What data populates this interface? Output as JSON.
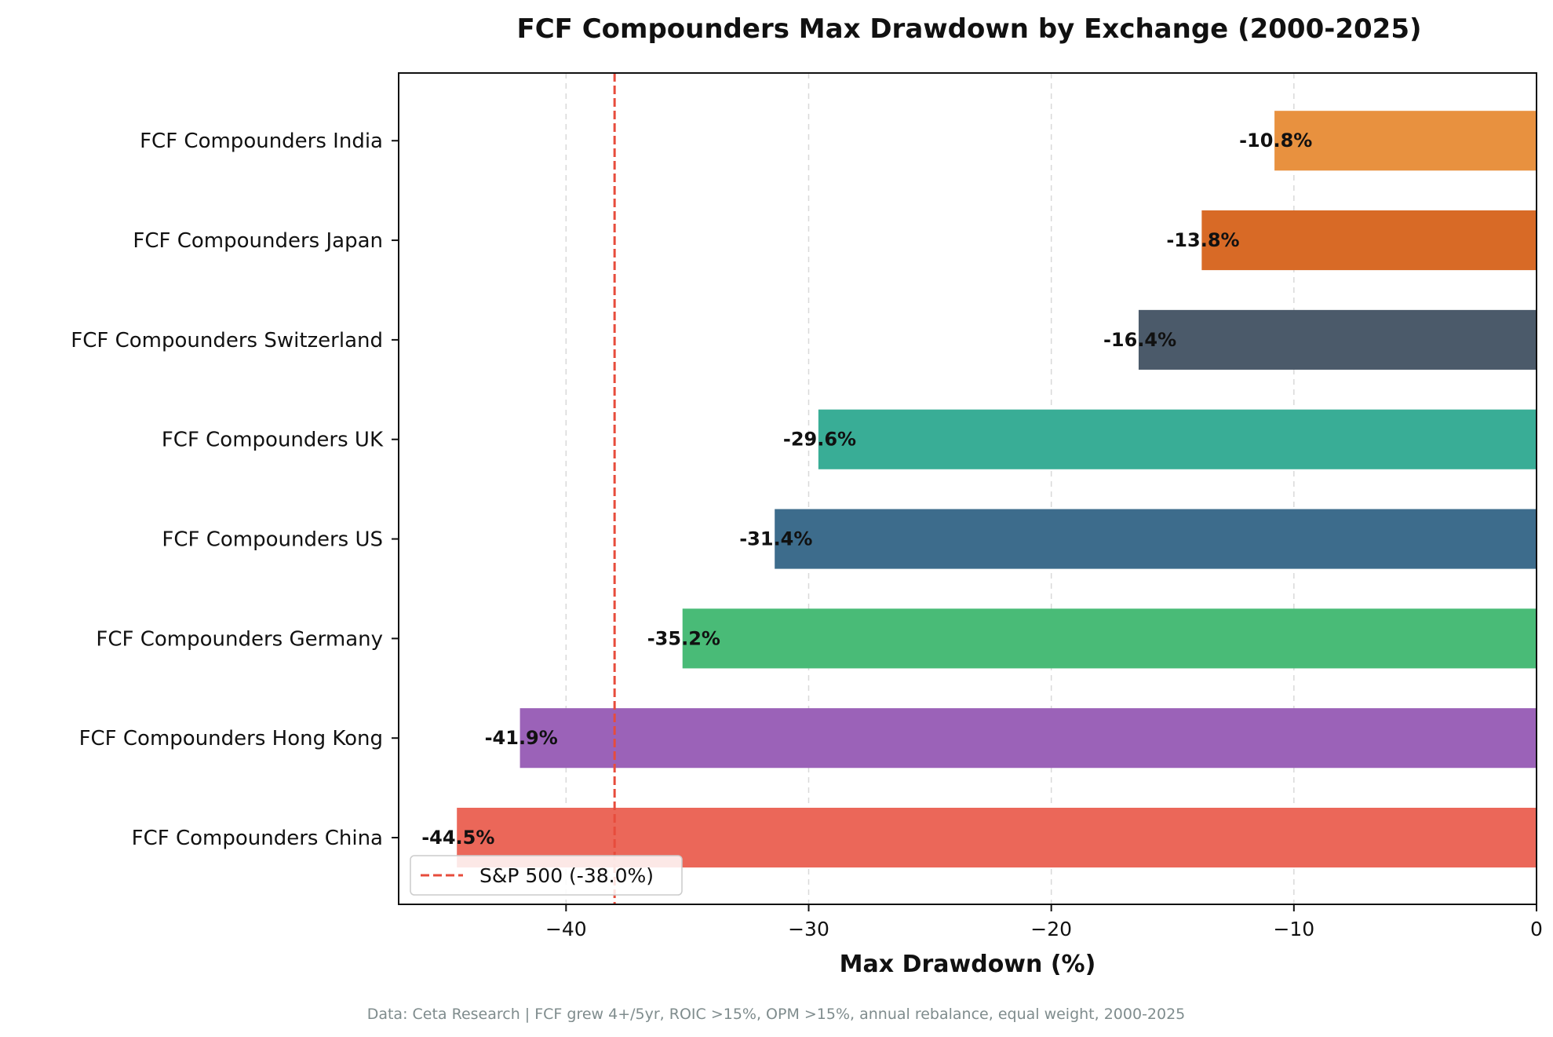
{
  "chart_data": {
    "type": "bar",
    "orientation": "horizontal",
    "title": "FCF Compounders Max Drawdown by Exchange (2000-2025)",
    "xlabel": "Max Drawdown (%)",
    "ylabel": "",
    "xlim": [
      -46.9,
      0
    ],
    "xticks": [
      -40,
      -30,
      -20,
      -10,
      0
    ],
    "xtick_labels": [
      "−40",
      "−30",
      "−20",
      "−10",
      "0"
    ],
    "grid": "vertical dashed",
    "categories": [
      "FCF Compounders India",
      "FCF Compounders Japan",
      "FCF Compounders Switzerland",
      "FCF Compounders UK",
      "FCF Compounders US",
      "FCF Compounders Germany",
      "FCF Compounders Hong Kong",
      "FCF Compounders China"
    ],
    "values": [
      -10.8,
      -13.8,
      -16.4,
      -29.6,
      -31.4,
      -35.2,
      -41.9,
      -44.5
    ],
    "value_labels": [
      "-10.8%",
      "-13.8%",
      "-16.4%",
      "-29.6%",
      "-31.4%",
      "-35.2%",
      "-41.9%",
      "-44.5%"
    ],
    "colors": [
      "#e8913f",
      "#d86a26",
      "#4b5a6a",
      "#39ad96",
      "#3d6c8c",
      "#49bb77",
      "#9b62b8",
      "#eb6759"
    ],
    "reference_line": {
      "value": -38.0,
      "label": "S&P 500 (-38.0%)",
      "color": "#e74c3c",
      "style": "dashed"
    },
    "legend_placement": "bottom-left",
    "footnote": "Data: Ceta Research | FCF grew 4+/5yr, ROIC >15%, OPM >15%, annual rebalance, equal weight, 2000-2025"
  }
}
